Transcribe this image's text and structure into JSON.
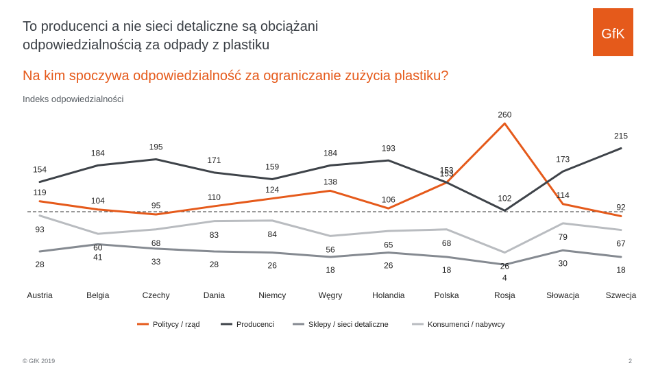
{
  "header": {
    "title_line1": "To producenci a nie sieci detaliczne są obciążani",
    "title_line2": "odpowiedzialnością za odpady z plastiku",
    "subtitle": "Na kim spoczywa odpowiedzialność za ograniczanie zużycia plastiku?",
    "caption": "Indeks odpowiedzialności",
    "logo_text": "GfK"
  },
  "footer": {
    "copyright": "© GfK 2019",
    "page_number": "2"
  },
  "colors": {
    "politycy": "#e55a1b",
    "producenci": "#3e4349",
    "sklepy": "#858a91",
    "konsumenci": "#b9bcc0",
    "accent": "#e55a1b"
  },
  "chart_data": {
    "type": "line",
    "title": "Na kim spoczywa odpowiedzialność za ograniczanie zużycia plastiku?",
    "ylabel": "Indeks odpowiedzialności",
    "categories": [
      "Austria",
      "Belgia",
      "Czechy",
      "Dania",
      "Niemcy",
      "Węgry",
      "Holandia",
      "Polska",
      "Rosja",
      "Słowacja",
      "Szwecja"
    ],
    "reference_line": 100,
    "ylim": [
      0,
      260
    ],
    "series": [
      {
        "name": "Politycy / rząd",
        "color_key": "politycy",
        "values": [
          119,
          104,
          95,
          110,
          124,
          138,
          106,
          153,
          260,
          114,
          92
        ]
      },
      {
        "name": "Producenci",
        "color_key": "producenci",
        "values": [
          154,
          184,
          195,
          171,
          159,
          184,
          193,
          153,
          102,
          173,
          215
        ]
      },
      {
        "name": "Sklepy / sieci detaliczne",
        "color_key": "sklepy",
        "values": [
          28,
          41,
          33,
          28,
          26,
          18,
          26,
          18,
          4,
          30,
          18
        ]
      },
      {
        "name": "Konsumenci / nabywcy",
        "color_key": "konsumenci",
        "values": [
          93,
          60,
          68,
          83,
          84,
          56,
          65,
          68,
          26,
          79,
          67
        ]
      }
    ]
  }
}
